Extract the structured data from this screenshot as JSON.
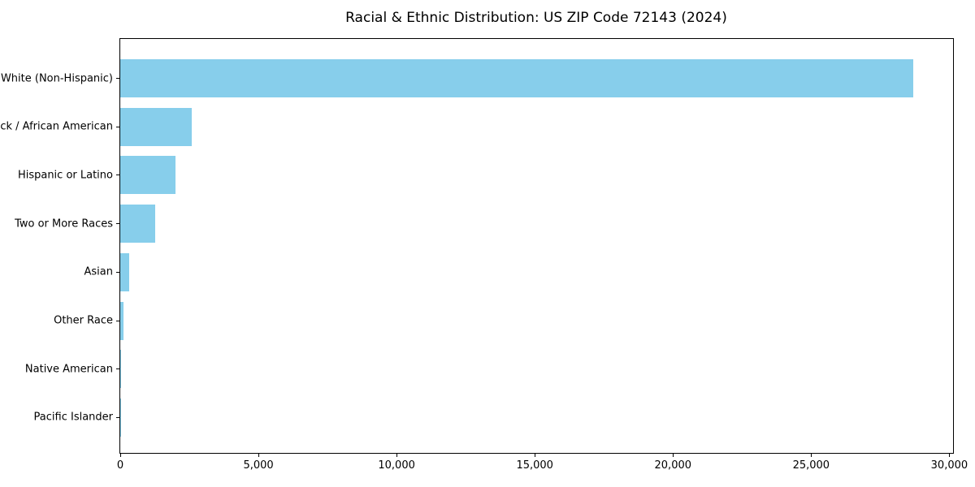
{
  "figure": {
    "background": "#ffffff",
    "text_color": "#000000",
    "spine_color": "#000000"
  },
  "chart_data": {
    "type": "bar",
    "orientation": "horizontal",
    "title": "Racial & Ethnic Distribution: US ZIP Code 72143 (2024)",
    "categories": [
      "White (Non-Hispanic)",
      "Black / African American",
      "Hispanic or Latino",
      "Two or More Races",
      "Asian",
      "Other Race",
      "Native American",
      "Pacific Islander"
    ],
    "values": [
      28700,
      2600,
      2000,
      1250,
      320,
      130,
      25,
      10
    ],
    "xlabel": "",
    "ylabel": "",
    "xlim": [
      0,
      30135
    ],
    "xticks": {
      "values": [
        0,
        5000,
        10000,
        15000,
        20000,
        25000,
        30000
      ],
      "labels": [
        "0",
        "5,000",
        "10,000",
        "15,000",
        "20,000",
        "25,000",
        "30,000"
      ]
    },
    "bar_color": "#87CEEB",
    "grid": false,
    "legend": null
  }
}
